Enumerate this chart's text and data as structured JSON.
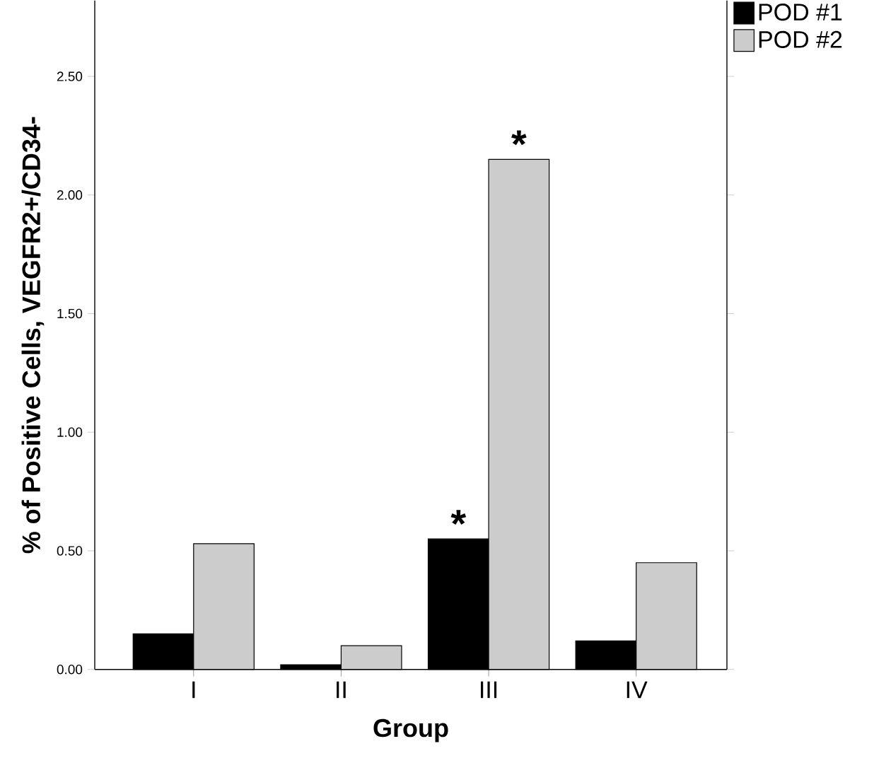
{
  "chart_data": {
    "type": "bar",
    "xlabel": "Group",
    "ylabel": "% of Positive Cells, VEGFR2+/CD34-",
    "categories": [
      "I",
      "II",
      "III",
      "IV"
    ],
    "series": [
      {
        "name": "POD #1",
        "color": "#000000",
        "values": [
          0.15,
          0.02,
          0.55,
          0.12
        ]
      },
      {
        "name": "POD #2",
        "color": "#cccccc",
        "values": [
          0.53,
          0.1,
          2.15,
          0.45
        ]
      }
    ],
    "ylim": [
      0,
      2.82
    ],
    "yticks": [
      {
        "value": 0,
        "label": "0.00"
      },
      {
        "value": 0.5,
        "label": "0.50"
      },
      {
        "value": 1.0,
        "label": "1.00"
      },
      {
        "value": 1.5,
        "label": "1.50"
      },
      {
        "value": 2.0,
        "label": "2.00"
      },
      {
        "value": 2.5,
        "label": "2.50"
      }
    ],
    "annotations": [
      {
        "text": "*",
        "x": "III",
        "y": 0.55
      },
      {
        "text": "*",
        "x": "III",
        "y": 2.15
      }
    ],
    "legend": "top right",
    "grid": false
  }
}
